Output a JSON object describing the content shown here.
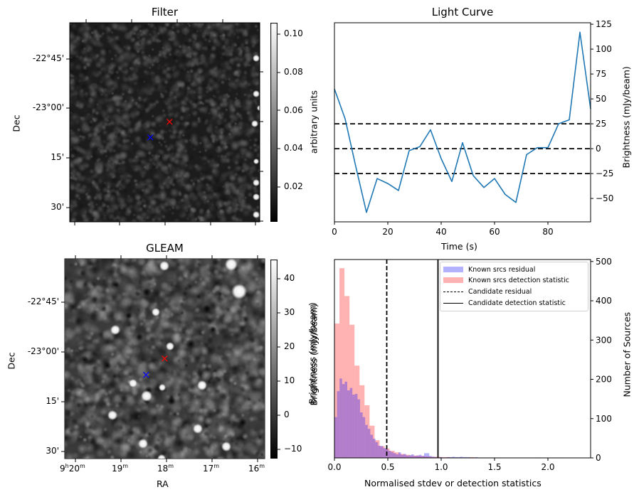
{
  "panels": {
    "filter": {
      "title": "Filter",
      "ylabel": "Dec",
      "yticks": [
        "-22°45'",
        "-23°00'",
        "15'",
        "30'"
      ],
      "colorbar_label": "arbitrary units",
      "colorbar_ticks": [
        "0.10",
        "0.08",
        "0.06",
        "0.04",
        "0.02"
      ],
      "colorbar_range": [
        0.0018,
        0.106
      ]
    },
    "gleam": {
      "title": "GLEAM",
      "ylabel": "Dec",
      "xlabel": "RA",
      "yticks": [
        "-22°45'",
        "-23°00'",
        "15'",
        "30'"
      ],
      "xticks": [
        {
          "main": "9",
          "sup1": "h",
          "mid": "20",
          "sup2": "m"
        },
        {
          "main": "19",
          "sup2": "m"
        },
        {
          "main": "18",
          "sup2": "m"
        },
        {
          "main": "17",
          "sup2": "m"
        },
        {
          "main": "16",
          "sup2": "m"
        }
      ],
      "colorbar_label": "Brightness (mJy/beam)",
      "colorbar_ticks": [
        "40",
        "30",
        "20",
        "10",
        "0",
        "−10"
      ],
      "colorbar_range": [
        -12.7,
        45.6
      ]
    },
    "markers": {
      "candidate_color": "#ff0000",
      "known_color": "#0000ff",
      "symbol": "×"
    }
  },
  "chart_data": [
    {
      "type": "line",
      "title": "Light Curve",
      "xlabel": "Time (s)",
      "ylabel": "Brightness (mJy/beam)",
      "xlim": [
        0,
        96
      ],
      "ylim": [
        -73.5,
        126.5
      ],
      "xticks": [
        "0",
        "20",
        "40",
        "60",
        "80"
      ],
      "xtick_values": [
        0,
        20,
        40,
        60,
        80
      ],
      "yticks": [
        "125",
        "100",
        "75",
        "50",
        "25",
        "0",
        "−25",
        "−50"
      ],
      "ytick_values": [
        125,
        100,
        75,
        50,
        25,
        0,
        -25,
        -50
      ],
      "series_color": "#1f77b4",
      "x": [
        0,
        4,
        8,
        12,
        16,
        20,
        24,
        28,
        32,
        36,
        40,
        44,
        48,
        52,
        56,
        60,
        64,
        68,
        72,
        76,
        80,
        84,
        88,
        92,
        96
      ],
      "y": [
        60,
        30,
        -18,
        -64,
        -30,
        -35,
        -42,
        -2,
        2,
        19,
        -10,
        -33,
        6,
        -27,
        -39,
        -30,
        -46,
        -54,
        -6,
        1,
        1,
        25,
        29,
        117,
        40
      ],
      "hlines": [
        25,
        0,
        -25
      ],
      "hline_style": "dashed"
    },
    {
      "type": "bar",
      "subtype": "histogram",
      "xlabel": "Normalised stdev or detection statistics",
      "ylabel_left": "Brightness (mJy/beam)",
      "ylabel_right": "Number of Sources",
      "xlim": [
        0,
        2.4
      ],
      "ylim": [
        0,
        505
      ],
      "xticks": [
        "0.0",
        "0.5",
        "1.0",
        "1.5",
        "2.0"
      ],
      "xtick_values": [
        0,
        0.5,
        1.0,
        1.5,
        2.0
      ],
      "yticks": [
        "500",
        "400",
        "300",
        "200",
        "100",
        "0"
      ],
      "ytick_values": [
        500,
        400,
        300,
        200,
        100,
        0
      ],
      "series": [
        {
          "name": "Known srcs residual",
          "color": "#0000ff",
          "alpha": 0.3,
          "bin_start": 0.0,
          "bin_width": 0.024,
          "values": [
            104,
            170,
            202,
            188,
            194,
            172,
            178,
            161,
            163,
            149,
            116,
            104,
            84,
            74,
            59,
            49,
            40,
            31,
            30,
            25,
            22,
            18,
            15,
            12,
            9,
            14,
            8,
            10,
            6,
            7,
            9,
            5,
            6,
            8,
            5,
            12,
            12,
            5,
            3,
            2,
            0,
            2,
            1,
            1,
            2,
            2,
            3,
            2,
            2,
            3,
            2,
            2,
            2,
            0,
            1,
            2,
            1,
            1,
            0,
            0,
            1,
            0,
            0,
            0,
            0,
            0,
            0,
            0,
            0,
            0,
            0,
            0,
            0,
            0,
            0,
            0,
            0,
            0,
            0,
            0,
            0,
            0,
            0,
            0,
            0,
            0,
            0,
            0,
            0,
            0,
            0,
            0,
            0,
            0,
            0,
            0,
            0,
            0,
            0,
            0
          ]
        },
        {
          "name": "Known srcs detection statistic",
          "color": "#ff0000",
          "alpha": 0.3,
          "bin_start": 0.0,
          "bin_width": 0.047,
          "values": [
            342,
            483,
            412,
            339,
            235,
            185,
            134,
            82,
            45,
            30,
            24,
            18,
            14,
            10,
            8,
            6,
            6,
            5,
            4,
            3,
            3,
            2,
            2,
            1,
            1,
            1,
            1,
            2,
            1,
            0,
            1,
            1,
            1,
            0,
            0,
            0,
            0,
            0,
            0,
            0,
            1,
            0,
            0,
            0,
            1,
            0,
            0,
            0,
            0,
            0,
            0
          ]
        }
      ],
      "vlines": [
        {
          "name": "Candidate residual",
          "x": 0.49,
          "style": "dashed"
        },
        {
          "name": "Candidate detection statistic",
          "x": 0.97,
          "style": "solid"
        }
      ],
      "legend_position": "top-right"
    }
  ]
}
